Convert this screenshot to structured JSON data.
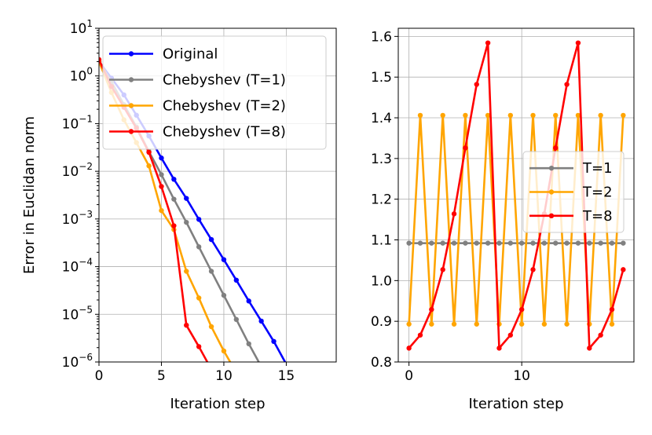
{
  "chart_data": [
    {
      "type": "line",
      "yscale": "log",
      "xlabel": "Iteration step",
      "ylabel": "Error in Euclidan norm",
      "xlim": [
        0,
        19
      ],
      "ylim": [
        1e-06,
        10
      ],
      "xticks": [
        0,
        5,
        10,
        15
      ],
      "xtick_labels": [
        "0",
        "5",
        "10",
        "15"
      ],
      "yticks": [
        {
          "value": 10,
          "base": "10",
          "exp": "1"
        },
        {
          "value": 1,
          "base": "10",
          "exp": "0"
        },
        {
          "value": 0.1,
          "base": "10",
          "exp": "−1"
        },
        {
          "value": 0.01,
          "base": "10",
          "exp": "−2"
        },
        {
          "value": 0.001,
          "base": "10",
          "exp": "−3"
        },
        {
          "value": 0.0001,
          "base": "10",
          "exp": "−4"
        },
        {
          "value": 1e-05,
          "base": "10",
          "exp": "−5"
        },
        {
          "value": 1e-06,
          "base": "10",
          "exp": "−6"
        }
      ],
      "grid": true,
      "legend_position": "top-left",
      "series": [
        {
          "name": "Original",
          "color": "#0000ff",
          "x": [
            0,
            1,
            2,
            3,
            4,
            5,
            6,
            7,
            8,
            9,
            10,
            11,
            12,
            13,
            14,
            15
          ],
          "y": [
            2.0,
            0.9,
            0.4,
            0.15,
            0.055,
            0.019,
            0.0068,
            0.0027,
            0.00098,
            0.00037,
            0.00014,
            5.2e-05,
            1.9e-05,
            7.2e-06,
            2.7e-06,
            9e-07
          ]
        },
        {
          "name": "Chebyshev (T=1)",
          "color": "#808080",
          "x": [
            0,
            1,
            2,
            3,
            4,
            5,
            6,
            7,
            8,
            9,
            10,
            11,
            12,
            13
          ],
          "y": [
            2.0,
            0.75,
            0.25,
            0.085,
            0.026,
            0.0085,
            0.0026,
            0.00085,
            0.00026,
            8e-05,
            2.5e-05,
            7.8e-06,
            2.4e-06,
            8e-07
          ]
        },
        {
          "name": "Chebyshev (T=2)",
          "color": "#ffa500",
          "x": [
            0,
            1,
            2,
            3,
            4,
            5,
            6,
            7,
            8,
            9,
            10,
            11
          ],
          "y": [
            2.0,
            0.45,
            0.12,
            0.04,
            0.013,
            0.0015,
            0.0006,
            8e-05,
            2.2e-05,
            5.5e-06,
            1.7e-06,
            6e-07
          ]
        },
        {
          "name": "Chebyshev (T=8)",
          "color": "#ff0000",
          "x": [
            0,
            1,
            2,
            3,
            4,
            5,
            6,
            7,
            8,
            9
          ],
          "y": [
            2.2,
            0.6,
            0.22,
            0.08,
            0.025,
            0.0048,
            0.00072,
            5.9e-06,
            2.1e-06,
            7e-07
          ]
        }
      ]
    },
    {
      "type": "line",
      "xlabel": "Iteration step",
      "ylabel": "",
      "xlim": [
        -0.95,
        19.95
      ],
      "ylim": [
        0.8,
        1.62
      ],
      "xticks": [
        0,
        10
      ],
      "xtick_labels": [
        "0",
        "10"
      ],
      "yticks": [
        0.8,
        0.9,
        1.0,
        1.1,
        1.2,
        1.3,
        1.4,
        1.5,
        1.6
      ],
      "ytick_labels": [
        "0.8",
        "0.9",
        "1.0",
        "1.1",
        "1.2",
        "1.3",
        "1.4",
        "1.5",
        "1.6"
      ],
      "grid": true,
      "legend_position": "center-right",
      "series": [
        {
          "name": "T=1",
          "color": "#808080",
          "x": [
            0,
            1,
            2,
            3,
            4,
            5,
            6,
            7,
            8,
            9,
            10,
            11,
            12,
            13,
            14,
            15,
            16,
            17,
            18,
            19
          ],
          "y": [
            1.092,
            1.092,
            1.092,
            1.092,
            1.092,
            1.092,
            1.092,
            1.092,
            1.092,
            1.092,
            1.092,
            1.092,
            1.092,
            1.092,
            1.092,
            1.092,
            1.092,
            1.092,
            1.092,
            1.092
          ]
        },
        {
          "name": "T=2",
          "color": "#ffa500",
          "x": [
            0,
            1,
            2,
            3,
            4,
            5,
            6,
            7,
            8,
            9,
            10,
            11,
            12,
            13,
            14,
            15,
            16,
            17,
            18,
            19
          ],
          "y": [
            0.893,
            1.406,
            0.893,
            1.406,
            0.893,
            1.406,
            0.893,
            1.406,
            0.893,
            1.406,
            0.893,
            1.406,
            0.893,
            1.406,
            0.893,
            1.406,
            0.893,
            1.406,
            0.893,
            1.406
          ]
        },
        {
          "name": "T=8",
          "color": "#ff0000",
          "x": [
            0,
            1,
            2,
            3,
            4,
            5,
            6,
            7,
            8,
            9,
            10,
            11,
            12,
            13,
            14,
            15,
            16,
            17,
            18,
            19
          ],
          "y": [
            0.834,
            0.866,
            0.929,
            1.027,
            1.164,
            1.326,
            1.482,
            1.584,
            0.834,
            0.866,
            0.929,
            1.027,
            1.164,
            1.326,
            1.482,
            1.584,
            0.834,
            0.866,
            0.929,
            1.027
          ]
        }
      ]
    }
  ]
}
